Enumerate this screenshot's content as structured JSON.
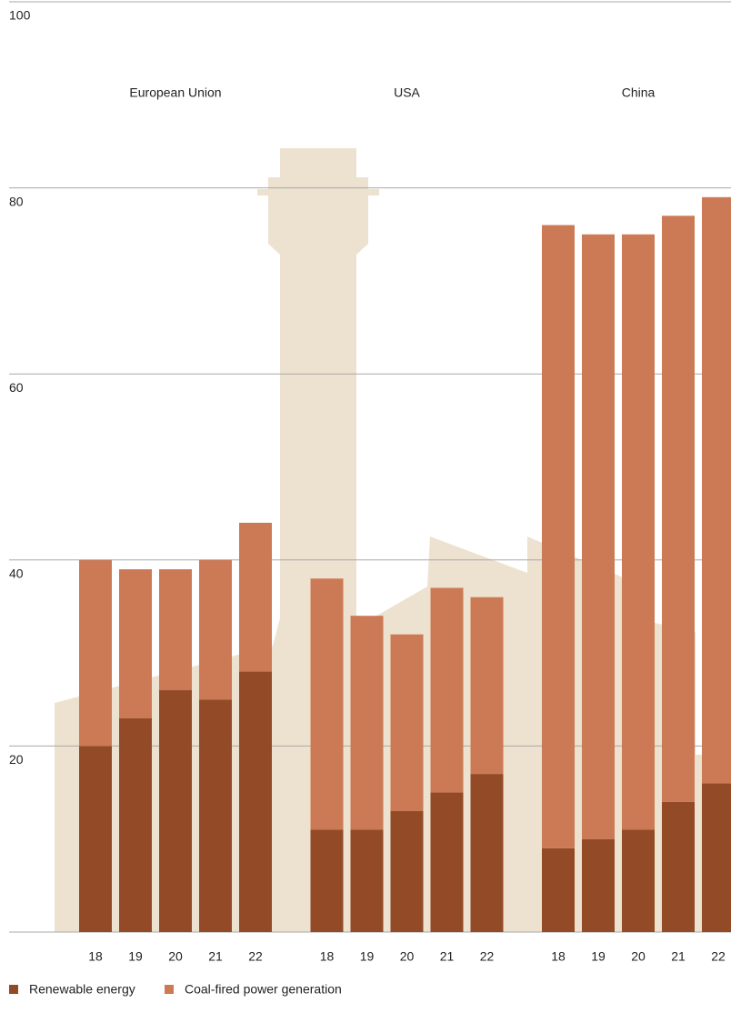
{
  "chart_data": {
    "type": "stacked-bar",
    "group_labels": [
      "European Union",
      "USA",
      "China"
    ],
    "categories": [
      "18",
      "19",
      "20",
      "21",
      "22",
      "18",
      "19",
      "20",
      "21",
      "22",
      "18",
      "19",
      "20",
      "21",
      "22"
    ],
    "series": [
      {
        "name": "Renewable energy",
        "color": "#934b27",
        "values": [
          20,
          23,
          26,
          25,
          28,
          11,
          11,
          13,
          15,
          17,
          9,
          10,
          11,
          14,
          16
        ]
      },
      {
        "name": "Coal-fired power generation",
        "color": "#cc7a55",
        "values": [
          20,
          16,
          13,
          15,
          16,
          27,
          23,
          19,
          22,
          19,
          67,
          65,
          64,
          63,
          63
        ]
      }
    ],
    "ylim": [
      0,
      100
    ],
    "yticks": [
      20,
      40,
      60,
      80,
      100
    ],
    "grid": true
  }
}
